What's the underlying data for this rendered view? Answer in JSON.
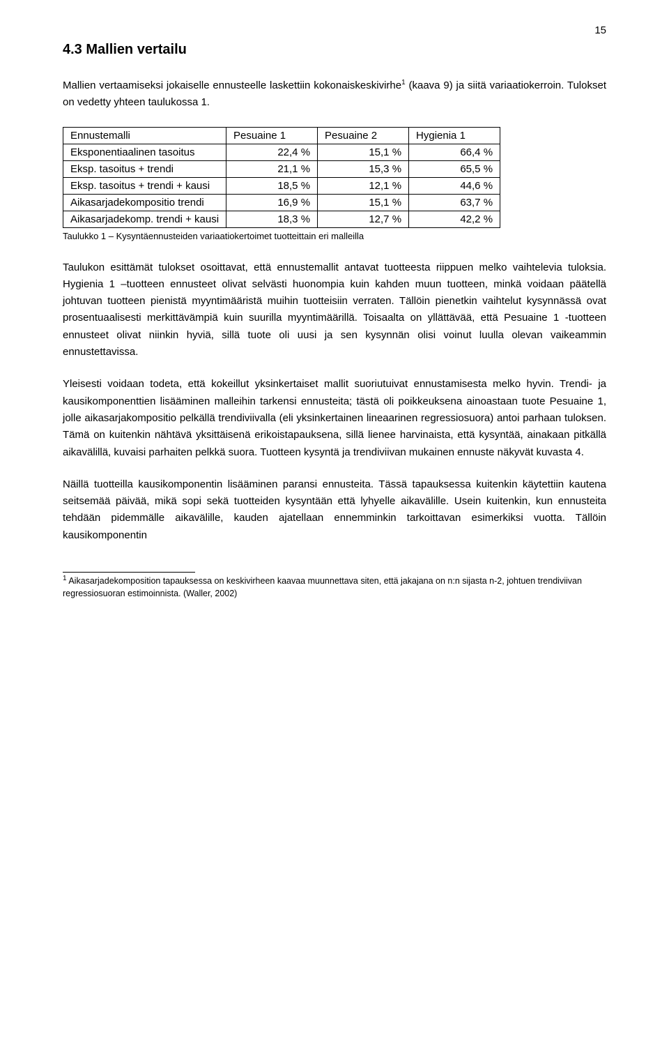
{
  "page_number": "15",
  "heading": "4.3    Mallien vertailu",
  "intro_html": "Mallien vertaamiseksi jokaiselle ennusteelle laskettiin kokonaiskeskivirhe<span class=\"sup\">1</span> (kaava 9) ja siitä variaatiokerroin. Tulokset on vedetty yhteen taulukossa 1.",
  "table": {
    "headers": [
      "Ennustemalli",
      "Pesuaine 1",
      "Pesuaine 2",
      "Hygienia 1"
    ],
    "rows": [
      [
        "Eksponentiaalinen tasoitus",
        "22,4 %",
        "15,1 %",
        "66,4 %"
      ],
      [
        "Eksp. tasoitus + trendi",
        "21,1 %",
        "15,3 %",
        "65,5 %"
      ],
      [
        "Eksp. tasoitus + trendi + kausi",
        "18,5 %",
        "12,1 %",
        "44,6 %"
      ],
      [
        "Aikasarjadekompositio trendi",
        "16,9 %",
        "15,1 %",
        "63,7 %"
      ],
      [
        "Aikasarjadekomp. trendi + kausi",
        "18,3 %",
        "12,7 %",
        "42,2 %"
      ]
    ]
  },
  "table_caption": "Taulukko 1 – Kysyntäennusteiden variaatiokertoimet tuotteittain eri malleilla",
  "paragraphs": [
    "Taulukon esittämät tulokset osoittavat, että ennustemallit antavat tuotteesta riippuen melko vaihtelevia tuloksia. Hygienia 1 –tuotteen ennusteet olivat selvästi huonompia kuin kahden muun tuotteen, minkä voidaan päätellä johtuvan tuotteen pienistä myyntimääristä muihin tuotteisiin verraten. Tällöin pienetkin vaihtelut kysynnässä ovat prosentuaalisesti merkittävämpiä kuin suurilla myyntimäärillä. Toisaalta on yllättävää, että Pesuaine 1 -tuotteen ennusteet olivat niinkin hyviä, sillä tuote oli uusi ja sen kysynnän olisi voinut luulla olevan vaikeammin ennustettavissa.",
    "Yleisesti voidaan todeta, että kokeillut yksinkertaiset mallit suoriutuivat ennustamisesta melko hyvin. Trendi- ja kausikomponenttien lisääminen malleihin tarkensi ennusteita; tästä oli poikkeuksena ainoastaan tuote Pesuaine 1, jolle aikasarjakompositio pelkällä trendiviivalla (eli yksinkertainen lineaarinen regressiosuora) antoi parhaan tuloksen. Tämä on kuitenkin nähtävä yksittäisenä erikoistapauksena, sillä lienee harvinaista, että kysyntää, ainakaan pitkällä aikavälillä, kuvaisi parhaiten pelkkä suora. Tuotteen kysyntä ja trendiviivan mukainen ennuste näkyvät kuvasta 4.",
    "Näillä tuotteilla kausikomponentin lisääminen paransi ennusteita. Tässä tapauksessa kuitenkin käytettiin kautena seitsemää päivää, mikä sopi sekä tuotteiden kysyntään että lyhyelle aikavälille. Usein kuitenkin, kun ennusteita tehdään pidemmälle aikavälille, kauden ajatellaan ennemminkin tarkoittavan esimerkiksi vuotta. Tällöin kausikomponentin"
  ],
  "footnote_html": "<span class=\"sup\">1</span> Aikasarjadekomposition tapauksessa on keskivirheen kaavaa muunnettava siten, että jakajana on n:n sijasta n-2, johtuen trendiviivan regressiosuoran estimoinnista. (Waller, 2002)"
}
